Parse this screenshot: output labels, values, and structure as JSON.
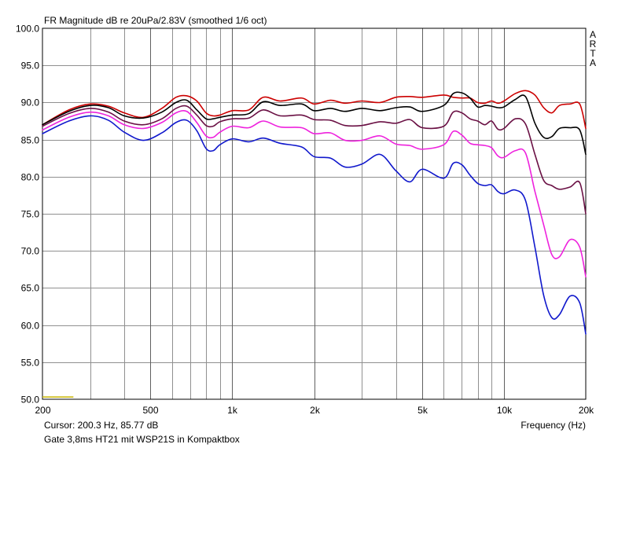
{
  "chart_data": {
    "type": "line",
    "title": "FR Magnitude dB re 20uPa/2.83V (smoothed 1/6 oct)",
    "brand": "ARTA",
    "xlabel": "Frequency (Hz)",
    "x_scale": "log",
    "xlim": [
      200,
      20000
    ],
    "ylim": [
      50,
      100
    ],
    "grid": true,
    "y_ticks": [
      {
        "value": 100,
        "label": "100.0"
      },
      {
        "value": 95,
        "label": "95.0"
      },
      {
        "value": 90,
        "label": "90.0"
      },
      {
        "value": 85,
        "label": "85.0"
      },
      {
        "value": 80,
        "label": "80.0"
      },
      {
        "value": 75,
        "label": "75.0"
      },
      {
        "value": 70,
        "label": "70.0"
      },
      {
        "value": 65,
        "label": "65.0"
      },
      {
        "value": 60,
        "label": "60.0"
      },
      {
        "value": 55,
        "label": "55.0"
      },
      {
        "value": 50,
        "label": "50.0"
      }
    ],
    "x_ticks": [
      {
        "value": 200,
        "label": "200"
      },
      {
        "value": 500,
        "label": "500"
      },
      {
        "value": 1000,
        "label": "1k"
      },
      {
        "value": 2000,
        "label": "2k"
      },
      {
        "value": 5000,
        "label": "5k"
      },
      {
        "value": 10000,
        "label": "10k"
      },
      {
        "value": 20000,
        "label": "20k"
      }
    ],
    "x_minor_grid": [
      300,
      400,
      600,
      700,
      800,
      900,
      3000,
      4000,
      6000,
      7000,
      8000,
      9000
    ],
    "cursor_text": "Cursor: 200.3 Hz, 85.77 dB",
    "note": "Gate 3,8ms HT21 mit WSP21S in Kompaktbox",
    "cursor_marker": {
      "x_start": 200,
      "x_end": 260,
      "y": 50.3,
      "color": "#c8b400"
    },
    "series": [
      {
        "color": "#cc0000",
        "points": [
          [
            200,
            87.0
          ],
          [
            250,
            89.0
          ],
          [
            300,
            89.8
          ],
          [
            350,
            89.5
          ],
          [
            400,
            88.6
          ],
          [
            470,
            88.0
          ],
          [
            550,
            89.2
          ],
          [
            620,
            90.7
          ],
          [
            680,
            90.9
          ],
          [
            740,
            90.2
          ],
          [
            800,
            88.6
          ],
          [
            850,
            88.2
          ],
          [
            900,
            88.3
          ],
          [
            1000,
            88.9
          ],
          [
            1150,
            89.0
          ],
          [
            1300,
            90.7
          ],
          [
            1500,
            90.2
          ],
          [
            1800,
            90.6
          ],
          [
            2000,
            89.8
          ],
          [
            2300,
            90.3
          ],
          [
            2600,
            89.9
          ],
          [
            3000,
            90.2
          ],
          [
            3500,
            90.0
          ],
          [
            4000,
            90.7
          ],
          [
            4500,
            90.8
          ],
          [
            5000,
            90.7
          ],
          [
            6000,
            91.0
          ],
          [
            6500,
            90.7
          ],
          [
            7000,
            90.6
          ],
          [
            7500,
            90.6
          ],
          [
            8000,
            90.0
          ],
          [
            8500,
            89.9
          ],
          [
            9000,
            90.2
          ],
          [
            9500,
            89.9
          ],
          [
            10000,
            90.2
          ],
          [
            11000,
            91.2
          ],
          [
            12000,
            91.6
          ],
          [
            13000,
            91.0
          ],
          [
            14000,
            89.3
          ],
          [
            15000,
            88.6
          ],
          [
            16000,
            89.6
          ],
          [
            17500,
            89.8
          ],
          [
            19000,
            89.8
          ],
          [
            20000,
            86.5
          ]
        ]
      },
      {
        "color": "#000000",
        "points": [
          [
            200,
            87.0
          ],
          [
            250,
            88.8
          ],
          [
            300,
            89.6
          ],
          [
            350,
            89.3
          ],
          [
            400,
            88.2
          ],
          [
            470,
            87.9
          ],
          [
            550,
            88.7
          ],
          [
            620,
            90.0
          ],
          [
            680,
            90.3
          ],
          [
            740,
            89.0
          ],
          [
            800,
            87.8
          ],
          [
            850,
            87.8
          ],
          [
            900,
            88.0
          ],
          [
            1000,
            88.3
          ],
          [
            1150,
            88.5
          ],
          [
            1300,
            90.1
          ],
          [
            1500,
            89.6
          ],
          [
            1800,
            89.8
          ],
          [
            2000,
            88.9
          ],
          [
            2300,
            89.2
          ],
          [
            2600,
            88.8
          ],
          [
            3000,
            89.2
          ],
          [
            3500,
            88.9
          ],
          [
            4000,
            89.3
          ],
          [
            4500,
            89.4
          ],
          [
            5000,
            88.8
          ],
          [
            6000,
            89.6
          ],
          [
            6500,
            91.2
          ],
          [
            7000,
            91.3
          ],
          [
            7500,
            90.6
          ],
          [
            8000,
            89.4
          ],
          [
            8500,
            89.6
          ],
          [
            9000,
            89.5
          ],
          [
            9500,
            89.3
          ],
          [
            10000,
            89.4
          ],
          [
            11000,
            90.4
          ],
          [
            12000,
            90.8
          ],
          [
            13000,
            87.2
          ],
          [
            14000,
            85.3
          ],
          [
            15000,
            85.4
          ],
          [
            16000,
            86.5
          ],
          [
            17500,
            86.6
          ],
          [
            19000,
            86.3
          ],
          [
            20000,
            83.0
          ]
        ]
      },
      {
        "color": "#6a1044",
        "points": [
          [
            200,
            86.8
          ],
          [
            250,
            88.5
          ],
          [
            300,
            89.2
          ],
          [
            350,
            88.7
          ],
          [
            400,
            87.5
          ],
          [
            470,
            87.0
          ],
          [
            550,
            87.8
          ],
          [
            620,
            89.2
          ],
          [
            680,
            89.5
          ],
          [
            740,
            88.3
          ],
          [
            800,
            86.9
          ],
          [
            850,
            86.8
          ],
          [
            900,
            87.4
          ],
          [
            1000,
            87.8
          ],
          [
            1150,
            87.9
          ],
          [
            1300,
            89.0
          ],
          [
            1500,
            88.2
          ],
          [
            1800,
            88.3
          ],
          [
            2000,
            87.7
          ],
          [
            2300,
            87.6
          ],
          [
            2600,
            86.9
          ],
          [
            3000,
            86.9
          ],
          [
            3500,
            87.4
          ],
          [
            4000,
            87.2
          ],
          [
            4500,
            87.7
          ],
          [
            5000,
            86.6
          ],
          [
            6000,
            86.8
          ],
          [
            6500,
            88.7
          ],
          [
            7000,
            88.6
          ],
          [
            7500,
            87.8
          ],
          [
            8000,
            87.5
          ],
          [
            8500,
            87.0
          ],
          [
            9000,
            87.5
          ],
          [
            9500,
            86.4
          ],
          [
            10000,
            86.5
          ],
          [
            11000,
            87.8
          ],
          [
            12000,
            87.1
          ],
          [
            13000,
            83.0
          ],
          [
            14000,
            79.5
          ],
          [
            15000,
            78.8
          ],
          [
            16000,
            78.3
          ],
          [
            17500,
            78.6
          ],
          [
            19000,
            79.2
          ],
          [
            20000,
            75.0
          ]
        ]
      },
      {
        "color": "#ee22dd",
        "points": [
          [
            200,
            86.3
          ],
          [
            250,
            88.0
          ],
          [
            300,
            88.7
          ],
          [
            350,
            88.2
          ],
          [
            400,
            87.0
          ],
          [
            470,
            86.5
          ],
          [
            550,
            87.3
          ],
          [
            620,
            88.6
          ],
          [
            680,
            88.8
          ],
          [
            740,
            87.3
          ],
          [
            800,
            85.5
          ],
          [
            850,
            85.3
          ],
          [
            900,
            86.0
          ],
          [
            1000,
            86.8
          ],
          [
            1150,
            86.6
          ],
          [
            1300,
            87.5
          ],
          [
            1500,
            86.7
          ],
          [
            1800,
            86.6
          ],
          [
            2000,
            85.8
          ],
          [
            2300,
            85.9
          ],
          [
            2600,
            84.9
          ],
          [
            3000,
            84.9
          ],
          [
            3500,
            85.5
          ],
          [
            4000,
            84.4
          ],
          [
            4500,
            84.2
          ],
          [
            5000,
            83.7
          ],
          [
            6000,
            84.3
          ],
          [
            6500,
            86.1
          ],
          [
            7000,
            85.6
          ],
          [
            7500,
            84.5
          ],
          [
            8000,
            84.3
          ],
          [
            8500,
            84.2
          ],
          [
            9000,
            83.9
          ],
          [
            9500,
            82.8
          ],
          [
            10000,
            82.6
          ],
          [
            11000,
            83.5
          ],
          [
            12000,
            83.2
          ],
          [
            13000,
            78.0
          ],
          [
            14000,
            73.5
          ],
          [
            15000,
            69.5
          ],
          [
            16000,
            69.2
          ],
          [
            17500,
            71.5
          ],
          [
            19000,
            70.5
          ],
          [
            20000,
            66.5
          ]
        ]
      },
      {
        "color": "#1018cc",
        "points": [
          [
            200,
            85.8
          ],
          [
            250,
            87.5
          ],
          [
            300,
            88.2
          ],
          [
            350,
            87.6
          ],
          [
            400,
            86.0
          ],
          [
            470,
            84.9
          ],
          [
            550,
            85.9
          ],
          [
            620,
            87.3
          ],
          [
            680,
            87.6
          ],
          [
            740,
            86.2
          ],
          [
            800,
            83.8
          ],
          [
            850,
            83.5
          ],
          [
            900,
            84.3
          ],
          [
            1000,
            85.1
          ],
          [
            1150,
            84.7
          ],
          [
            1300,
            85.2
          ],
          [
            1500,
            84.5
          ],
          [
            1800,
            84.0
          ],
          [
            2000,
            82.7
          ],
          [
            2300,
            82.5
          ],
          [
            2600,
            81.3
          ],
          [
            3000,
            81.7
          ],
          [
            3500,
            83.0
          ],
          [
            4000,
            80.8
          ],
          [
            4500,
            79.3
          ],
          [
            5000,
            81.0
          ],
          [
            6000,
            79.8
          ],
          [
            6500,
            81.8
          ],
          [
            7000,
            81.6
          ],
          [
            7500,
            80.2
          ],
          [
            8000,
            79.1
          ],
          [
            8500,
            78.8
          ],
          [
            9000,
            78.9
          ],
          [
            9500,
            78.0
          ],
          [
            10000,
            77.7
          ],
          [
            11000,
            78.2
          ],
          [
            12000,
            76.8
          ],
          [
            13000,
            70.5
          ],
          [
            14000,
            64.0
          ],
          [
            15000,
            61.0
          ],
          [
            16000,
            61.4
          ],
          [
            17500,
            63.9
          ],
          [
            19000,
            63.0
          ],
          [
            20000,
            58.8
          ]
        ]
      }
    ]
  }
}
